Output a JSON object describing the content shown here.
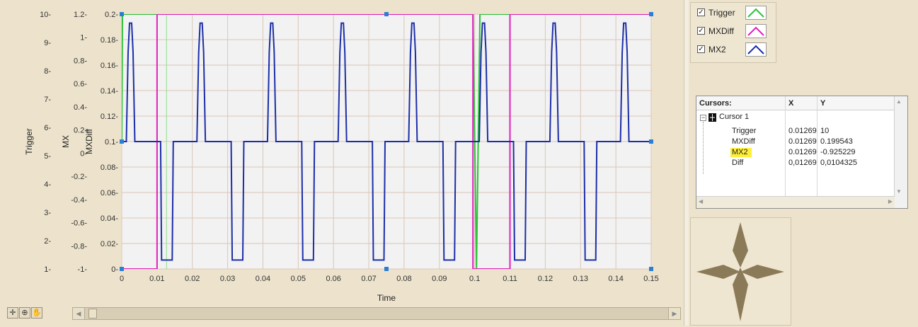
{
  "graph": {
    "x_axis_label": "Time",
    "y_axis_labels": [
      "Trigger",
      "MX",
      "MXDiff"
    ],
    "x_ticks": [
      "0",
      "0.01",
      "0.02",
      "0.03",
      "0.04",
      "0.05",
      "0.06",
      "0.07",
      "0.08",
      "0.09",
      "0.1",
      "0.11",
      "0.12",
      "0.13",
      "0.14",
      "0.15"
    ],
    "trigger_ticks": [
      "10-",
      "9-",
      "8-",
      "7-",
      "6-",
      "5-",
      "4-",
      "3-",
      "2-",
      "1-"
    ],
    "mx_ticks": [
      "1.2-",
      "1-",
      "0.8-",
      "0.6-",
      "0.4-",
      "0.2-",
      "0-",
      "-0.2-",
      "-0.4-",
      "-0.6-",
      "-0.8-",
      "-1-"
    ],
    "mxdiff_ticks": [
      "0.2-",
      "0.18-",
      "0.16-",
      "0.14-",
      "0.12-",
      "0.1-",
      "0.08-",
      "0.06-",
      "0.04-",
      "0.02-",
      "0-"
    ]
  },
  "chart_data": {
    "type": "line",
    "title": "",
    "xlabel": "Time",
    "ylabel": "MXDiff",
    "xlim": [
      0,
      0.15
    ],
    "ylim": [
      0,
      0.2
    ],
    "grid": true,
    "cursor_x": 0.01269,
    "series": [
      {
        "name": "Trigger",
        "color": "#2fc23a",
        "x": [
          0,
          0.0002,
          0.0015,
          0.0995,
          0.1005,
          0.1015,
          0.15
        ],
        "y": [
          0.1,
          0.2,
          0.2,
          0.2,
          0,
          0.2,
          0.2
        ]
      },
      {
        "name": "MXDiff",
        "color": "#e21fbf",
        "x": [
          0,
          0.01,
          0.01,
          0.0995,
          0.0995,
          0.11,
          0.11,
          0.15
        ],
        "y": [
          0,
          0,
          0.2,
          0.2,
          0,
          0,
          0.2,
          0.2
        ]
      },
      {
        "name": "MX2",
        "color": "#1c2ea8",
        "pulse_period": 0.02,
        "pulse_first_high": 0.0025,
        "pulse_first_low": 0.0115,
        "high_value": 0.193,
        "mid_value": 0.1,
        "low_value": 0.007
      }
    ]
  },
  "legend": {
    "items": [
      {
        "label": "Trigger",
        "color": "#2fc23a",
        "checked": true
      },
      {
        "label": "MXDiff",
        "color": "#e21fbf",
        "checked": true
      },
      {
        "label": "MX2",
        "color": "#1c2ea8",
        "checked": true
      }
    ]
  },
  "cursor_panel": {
    "headers": [
      "Cursors:",
      "X",
      "Y"
    ],
    "cursor_name": "Cursor 1",
    "rows": [
      {
        "name": "Trigger",
        "x": "0.01269",
        "y": "10"
      },
      {
        "name": "MXDiff",
        "x": "0.01269",
        "y": "0.199543"
      },
      {
        "name": "MX2",
        "x": "0.01269",
        "y": "-0.925229"
      },
      {
        "name": "Diff",
        "x": "0,01269",
        "y": "0,0104325"
      }
    ]
  },
  "toolbar": {
    "icons": [
      "crosshair-icon",
      "zoom-icon",
      "pan-hand-icon"
    ]
  }
}
